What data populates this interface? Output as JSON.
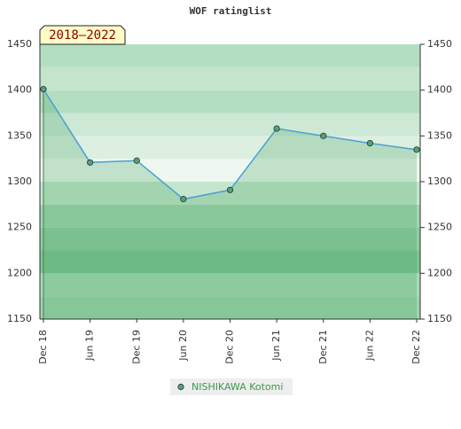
{
  "chart_data": {
    "type": "line",
    "title": "WOF ratinglist",
    "annotation": "2018–2022",
    "categories": [
      "Dec 18",
      "Jun 19",
      "Dec 19",
      "Jun 20",
      "Dec 20",
      "Jun 21",
      "Dec 21",
      "Jun 22",
      "Dec 22"
    ],
    "series": [
      {
        "name": "NISHIKAWA Kotomi",
        "color": "#4a9fd6",
        "values": [
          1401,
          1321,
          1323,
          1281,
          1291,
          1358,
          1350,
          1342,
          1335
        ]
      }
    ],
    "ylim": [
      1150,
      1450
    ],
    "yticks": [
      1150,
      1200,
      1250,
      1300,
      1350,
      1400,
      1450
    ],
    "legend": "bottom"
  }
}
